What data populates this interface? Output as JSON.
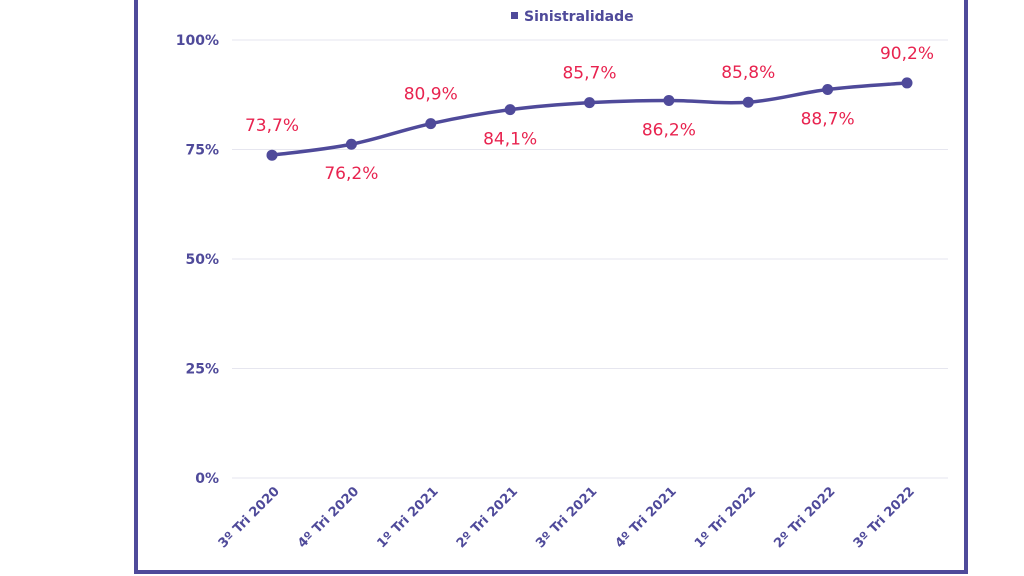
{
  "chart_data": {
    "type": "line",
    "categories": [
      "3º Tri 2020",
      "4º Tri 2020",
      "1º Tri 2021",
      "2º Tri 2021",
      "3º Tri 2021",
      "4º Tri 2021",
      "1º Tri 2022",
      "2º Tri 2022",
      "3º Tri 2022"
    ],
    "series": [
      {
        "name": "Sinistralidade",
        "values": [
          73.7,
          76.2,
          80.9,
          84.1,
          85.7,
          86.2,
          85.8,
          88.7,
          90.2
        ],
        "labels": [
          "73,7%",
          "76,2%",
          "80,9%",
          "84,1%",
          "85,7%",
          "86,2%",
          "85,8%",
          "88,7%",
          "90,2%"
        ],
        "label_positions": [
          "above",
          "below",
          "above",
          "below",
          "above",
          "below",
          "above",
          "below",
          "above"
        ]
      }
    ],
    "ylim": [
      0,
      100
    ],
    "yticks": [
      0,
      25,
      50,
      75,
      100
    ],
    "ytick_labels": [
      "0%",
      "25%",
      "50%",
      "75%",
      "100%"
    ],
    "grid": true,
    "legend_position": "top-center",
    "colors": {
      "line": "#4f4a9a",
      "data_labels": "#e8234f",
      "axis_text": "#4f4a9a",
      "grid": "#e6e6ef",
      "frame": "#4f4a9a"
    }
  }
}
